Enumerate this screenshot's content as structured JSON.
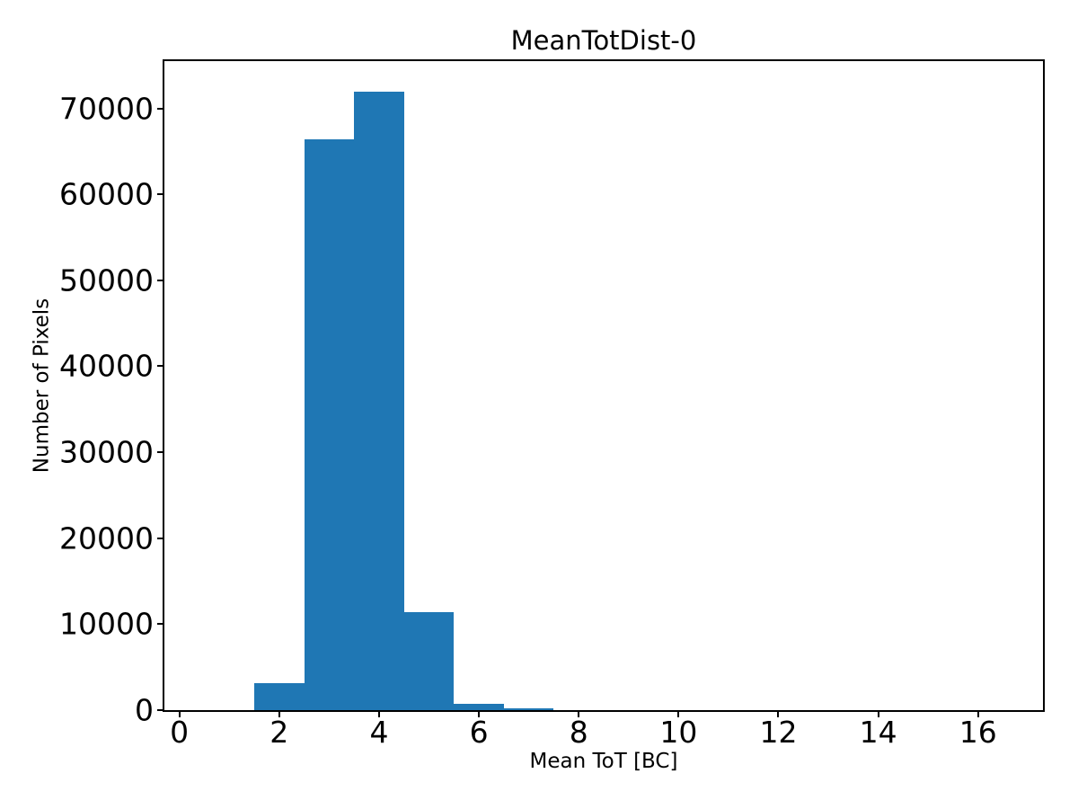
{
  "figure": {
    "background": "#ffffff"
  },
  "chart_data": {
    "type": "bar",
    "subtype": "histogram",
    "title": "MeanTotDist-0",
    "xlabel": "Mean ToT [BC]",
    "ylabel": "Number of Pixels",
    "bar_color": "#1f77b4",
    "axis_color": "#000000",
    "grid": false,
    "legend": null,
    "bin_edges": [
      0.5,
      1.5,
      2.5,
      3.5,
      4.5,
      5.5,
      6.5,
      7.5,
      8.5,
      9.5,
      10.5,
      11.5,
      12.5,
      13.5,
      14.5,
      15.5,
      16.5
    ],
    "counts": [
      0,
      3150,
      66350,
      71900,
      11450,
      730,
      200,
      0,
      0,
      0,
      0,
      0,
      0,
      0,
      0,
      0
    ],
    "x_ticks": [
      0,
      2,
      4,
      6,
      8,
      10,
      12,
      14,
      16
    ],
    "y_ticks": [
      0,
      10000,
      20000,
      30000,
      40000,
      50000,
      60000,
      70000
    ],
    "xlim": [
      -0.3,
      17.3
    ],
    "ylim": [
      0,
      75495
    ]
  }
}
